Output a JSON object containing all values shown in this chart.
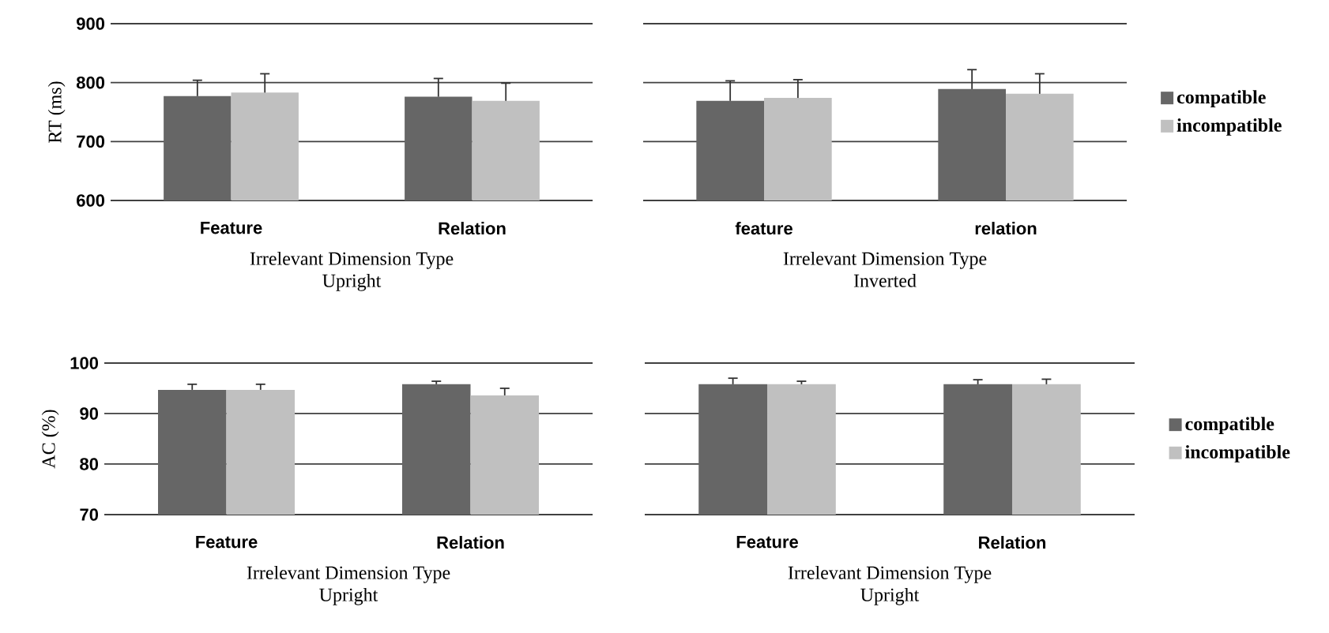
{
  "chart_data": [
    {
      "type": "bar",
      "ylabel": "RT (ms)",
      "xlabel": "Irrelevant Dimension Type",
      "subtitle": "Upright",
      "categories": [
        "Feature",
        "Relation"
      ],
      "ylim": [
        600,
        900
      ],
      "yticks": [
        600,
        700,
        800,
        900
      ],
      "grid": "y",
      "series": [
        {
          "color": "#666666",
          "values": [
            777,
            776
          ],
          "errors": [
            27,
            31
          ]
        },
        {
          "color": "#c0c0c0",
          "values": [
            783,
            769
          ],
          "errors": [
            32,
            30
          ]
        }
      ]
    },
    {
      "type": "bar",
      "xlabel": "Irrelevant Dimension Type",
      "subtitle": "Inverted",
      "categories": [
        "feature",
        "relation"
      ],
      "ylim": [
        600,
        900
      ],
      "yticks": [
        600,
        700,
        800,
        900
      ],
      "tick_labels": "x",
      "grid": "y",
      "legend": "right",
      "series": [
        {
          "name": "compatible",
          "color": "#666666",
          "values": [
            769,
            789
          ],
          "errors": [
            34,
            33
          ]
        },
        {
          "name": "incompatible",
          "color": "#c0c0c0",
          "values": [
            774,
            781
          ],
          "errors": [
            31,
            34
          ]
        }
      ]
    },
    {
      "type": "bar",
      "ylabel": "AC (%)",
      "xlabel": "Irrelevant Dimension Type",
      "subtitle": "Upright",
      "categories": [
        "Feature",
        "Relation"
      ],
      "ylim": [
        70,
        100
      ],
      "yticks": [
        70,
        80,
        90,
        100
      ],
      "grid": "y",
      "series": [
        {
          "color": "#666666",
          "values": [
            94.7,
            95.8
          ],
          "errors": [
            1.1,
            0.6
          ]
        },
        {
          "color": "#c0c0c0",
          "values": [
            94.7,
            93.6
          ],
          "errors": [
            1.1,
            1.4
          ]
        }
      ]
    },
    {
      "type": "bar",
      "xlabel": "Irrelevant Dimension Type",
      "subtitle": "Upright",
      "categories": [
        "Feature",
        "Relation"
      ],
      "ylim": [
        70,
        100
      ],
      "yticks": [
        70,
        80,
        90,
        100
      ],
      "tick_labels": "x",
      "grid": "y",
      "legend": "right",
      "series": [
        {
          "name": "compatible",
          "color": "#666666",
          "values": [
            95.8,
            95.8
          ],
          "errors": [
            1.2,
            0.9
          ]
        },
        {
          "name": "incompatible",
          "color": "#c0c0c0",
          "values": [
            95.8,
            95.8
          ],
          "errors": [
            0.6,
            1.0
          ]
        }
      ]
    }
  ]
}
